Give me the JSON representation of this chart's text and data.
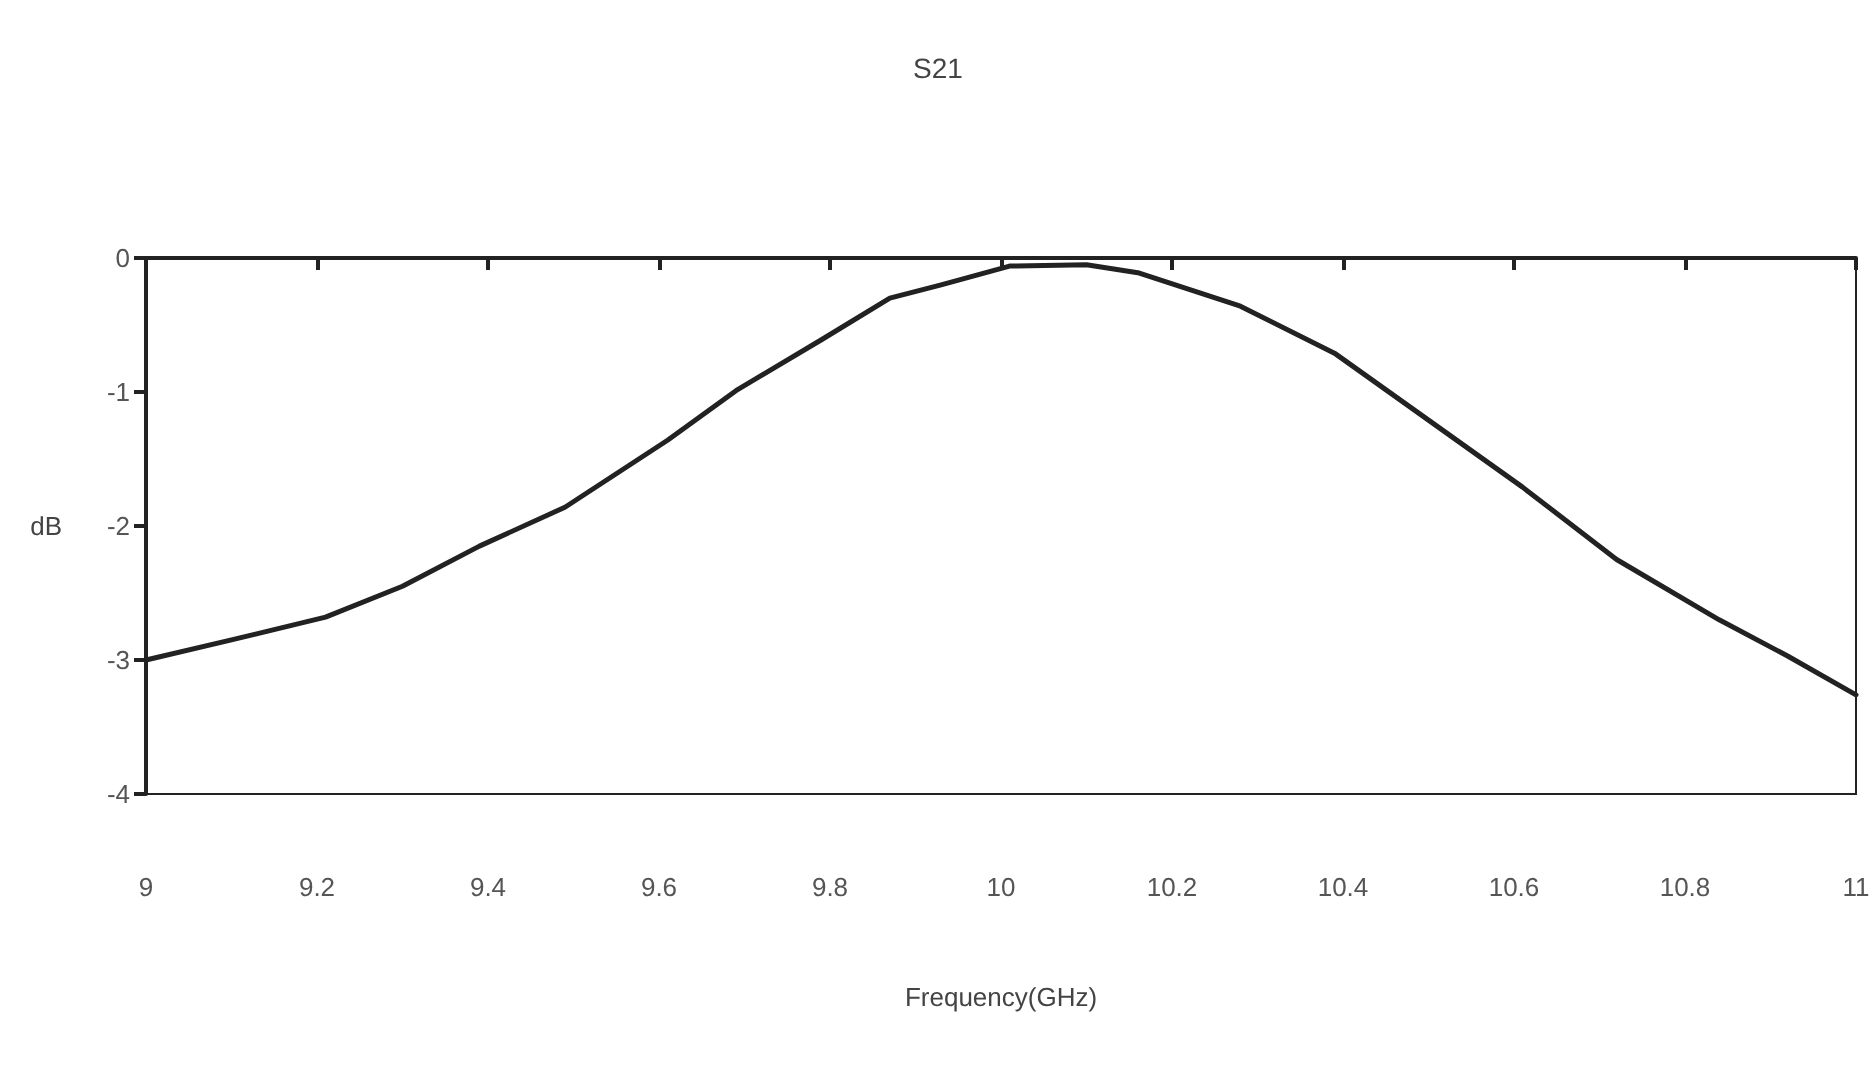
{
  "chart_data": {
    "type": "line",
    "title": "S21",
    "xlabel": "Frequency(GHz)",
    "ylabel": "dB",
    "series": [
      {
        "color": "#222222",
        "x": [
          9.0,
          9.1,
          9.21,
          9.3,
          9.39,
          9.49,
          9.55,
          9.61,
          9.69,
          9.79,
          9.87,
          9.93,
          10.01,
          10.1,
          10.16,
          10.28,
          10.39,
          10.5,
          10.61,
          10.72,
          10.84,
          10.92,
          11.0
        ],
        "values": [
          -3.0,
          -2.85,
          -2.68,
          -2.45,
          -2.15,
          -1.86,
          -1.61,
          -1.36,
          -0.99,
          -0.61,
          -0.3,
          -0.2,
          -0.06,
          -0.05,
          -0.11,
          -0.36,
          -0.71,
          -1.21,
          -1.71,
          -2.25,
          -2.7,
          -2.97,
          -3.26
        ]
      }
    ],
    "xlim": [
      9,
      11
    ],
    "xticks": [
      9,
      9.2,
      9.4,
      9.6,
      9.8,
      10,
      10.2,
      10.4,
      10.6,
      10.8,
      11
    ],
    "ylim": [
      -4,
      0
    ],
    "yticks": [
      -4,
      -3,
      -2,
      -1,
      0
    ],
    "grid": false,
    "marker": "none",
    "line_style": "solid"
  }
}
